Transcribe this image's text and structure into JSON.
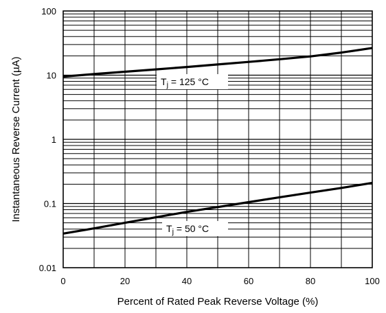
{
  "chart_data": {
    "type": "line",
    "xlabel": "Percent of Rated Peak Reverse Voltage (%)",
    "ylabel": "Instantaneous Reverse Current (µA)",
    "x_ticks": [
      "0",
      "20",
      "40",
      "60",
      "80",
      "100"
    ],
    "y_ticks": [
      "0.01",
      "0.1",
      "1",
      "10",
      "100"
    ],
    "xlim": [
      0,
      100
    ],
    "ylim": [
      0.01,
      100
    ],
    "y_scale": "log",
    "grid": true,
    "series": [
      {
        "name": "Tj = 125 °C",
        "label_main": "T",
        "label_sub": "j",
        "label_rest": " = 125 °C",
        "x": [
          0,
          10,
          20,
          30,
          40,
          50,
          60,
          70,
          80,
          90,
          100
        ],
        "y": [
          9.5,
          10.4,
          11.3,
          12.3,
          13.4,
          14.7,
          16.1,
          17.7,
          19.6,
          22.5,
          26.5
        ]
      },
      {
        "name": "Tj = 50 °C",
        "label_main": "T",
        "label_sub": "j",
        "label_rest": " = 50 °C",
        "x": [
          0,
          10,
          20,
          30,
          40,
          50,
          60,
          70,
          80,
          90,
          100
        ],
        "y": [
          0.034,
          0.041,
          0.05,
          0.061,
          0.074,
          0.088,
          0.105,
          0.125,
          0.148,
          0.175,
          0.21
        ]
      }
    ]
  }
}
